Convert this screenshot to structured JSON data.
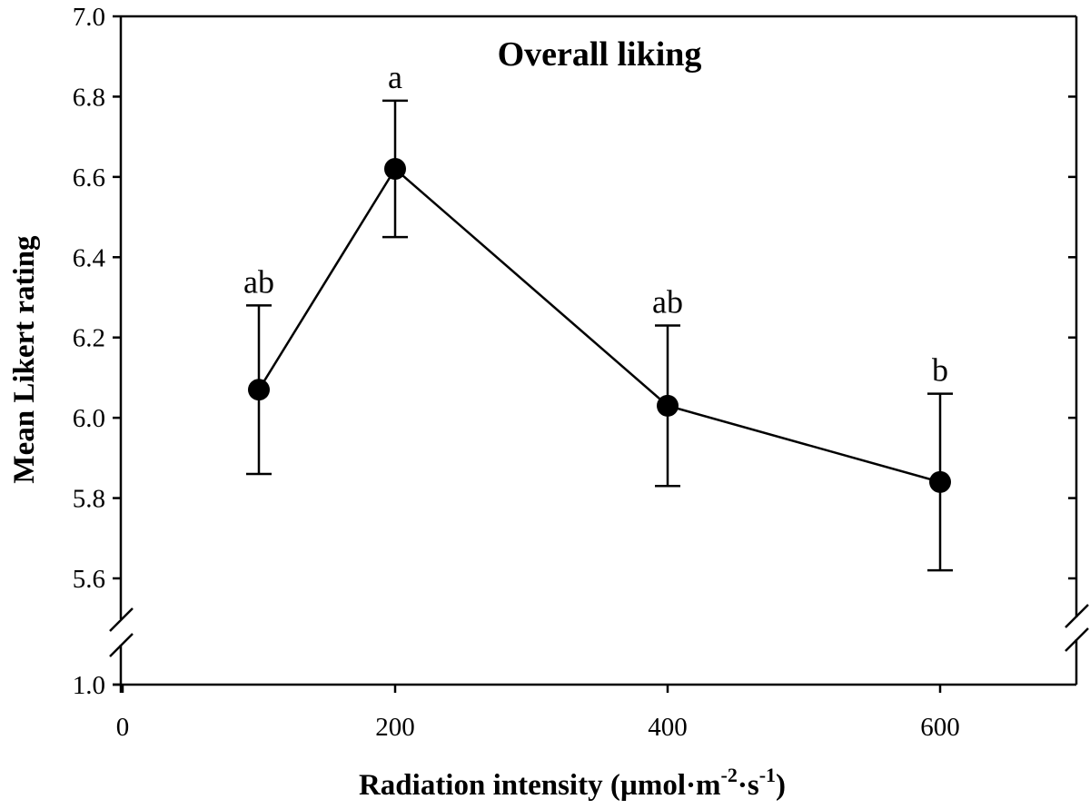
{
  "chart_data": {
    "type": "line",
    "title": "Overall liking",
    "xlabel": "Radiation intensity (µmol·m⁻²·s⁻¹)",
    "xlabel_parts": {
      "main": "Radiation intensity (µmol·m",
      "exp1": "-2",
      "mid": "·s",
      "exp2": "-1",
      "end": ")"
    },
    "ylabel": "Mean Likert rating",
    "xlim": [
      0,
      700
    ],
    "ylim": [
      1.0,
      7.0
    ],
    "y_axis_break": [
      1.0,
      5.6
    ],
    "xticks": [
      "0",
      "200",
      "400",
      "600"
    ],
    "xtick_values": [
      0,
      200,
      400,
      600
    ],
    "yticks": [
      "1.0",
      "5.6",
      "5.8",
      "6.0",
      "6.2",
      "6.4",
      "6.6",
      "6.8",
      "7.0"
    ],
    "ytick_values": [
      1.0,
      5.6,
      5.8,
      6.0,
      6.2,
      6.4,
      6.6,
      6.8,
      7.0
    ],
    "series": [
      {
        "name": "Overall liking",
        "x": [
          100,
          200,
          400,
          600
        ],
        "y": [
          6.07,
          6.62,
          6.03,
          5.84
        ],
        "err_low": [
          5.86,
          6.45,
          5.83,
          5.62
        ],
        "err_high": [
          6.28,
          6.79,
          6.23,
          6.06
        ],
        "labels": [
          "ab",
          "a",
          "ab",
          "b"
        ]
      }
    ],
    "grid": false
  }
}
